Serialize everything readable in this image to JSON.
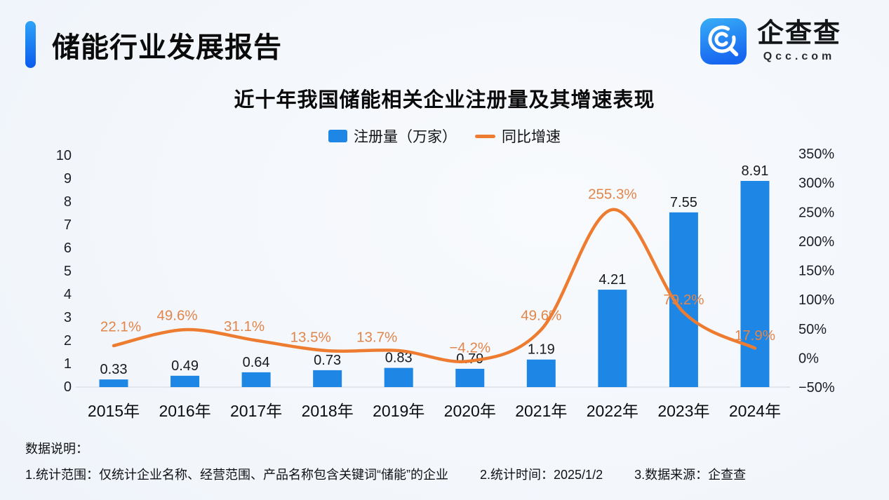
{
  "header": {
    "title": "储能行业发展报告"
  },
  "logo": {
    "name": "企查查",
    "domain": "Qcc.com"
  },
  "chart_data": {
    "type": "bar+line",
    "title": "近十年我国储能相关企业注册量及其增速表现",
    "categories": [
      "2015年",
      "2016年",
      "2017年",
      "2018年",
      "2019年",
      "2020年",
      "2021年",
      "2022年",
      "2023年",
      "2024年"
    ],
    "series": [
      {
        "name": "注册量（万家）",
        "type": "bar",
        "axis": "left",
        "color": "#1e87e5",
        "values": [
          0.33,
          0.49,
          0.64,
          0.73,
          0.83,
          0.79,
          1.19,
          4.21,
          7.55,
          8.91
        ],
        "labels": [
          "0.33",
          "0.49",
          "0.64",
          "0.73",
          "0.83",
          "0.79",
          "1.19",
          "4.21",
          "7.55",
          "8.91"
        ]
      },
      {
        "name": "同比增速",
        "type": "line",
        "axis": "right",
        "color": "#ed7c30",
        "label_color": "#e2854a",
        "values": [
          22.1,
          49.6,
          31.1,
          13.5,
          13.7,
          -4.2,
          49.6,
          255.3,
          79.2,
          17.9
        ],
        "labels": [
          "22.1%",
          "49.6%",
          "31.1%",
          "13.5%",
          "13.7%",
          "−4.2%",
          "49.6%",
          "255.3%",
          "79.2%",
          "17.9%"
        ]
      }
    ],
    "left_axis": {
      "min": 0,
      "max": 10,
      "step": 1,
      "tick_labels": [
        "0",
        "1",
        "2",
        "3",
        "4",
        "5",
        "6",
        "7",
        "8",
        "9",
        "10"
      ]
    },
    "right_axis": {
      "min": -50,
      "max": 350,
      "step": 50,
      "tick_labels": [
        "−50%",
        "0%",
        "50%",
        "100%",
        "150%",
        "200%",
        "250%",
        "300%",
        "350%"
      ]
    },
    "legend_position": "top",
    "grid": false
  },
  "notes": {
    "heading": "数据说明：",
    "items": [
      "1.统计范围：仅统计企业名称、经营范围、产品名称包含关键词“储能”的企业",
      "2.统计时间：2025/1/2",
      "3.数据来源：企查查"
    ]
  }
}
